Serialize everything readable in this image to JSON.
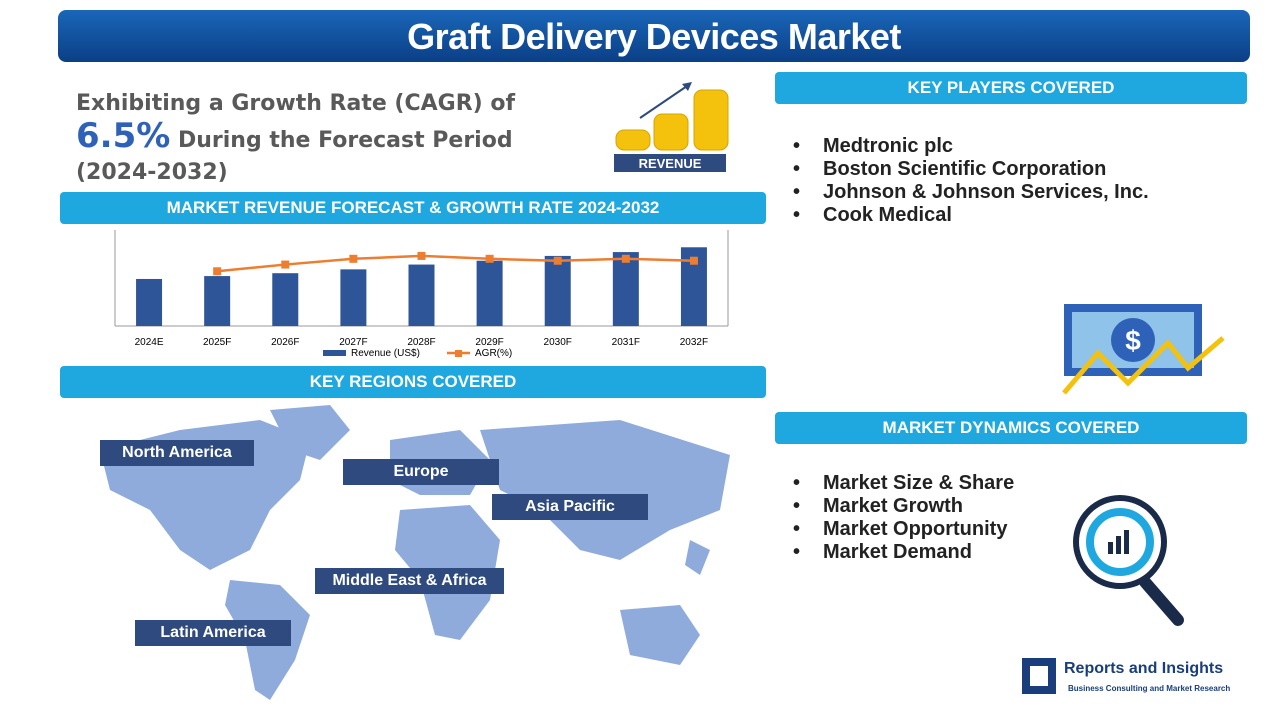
{
  "header": {
    "title": "Graft Delivery Devices Market"
  },
  "cagr": {
    "lead": "Exhibiting a Growth Rate (CAGR) of",
    "rate": "6.5%",
    "tail": "During the Forecast Period (2024-2032)",
    "icon_label": "REVENUE"
  },
  "sections": {
    "forecast": "MARKET REVENUE FORECAST & GROWTH RATE 2024-2032",
    "regions": "KEY REGIONS COVERED",
    "players": "KEY PLAYERS COVERED",
    "dynamics": "MARKET DYNAMICS COVERED"
  },
  "chart_data": {
    "type": "bar-line",
    "categories": [
      "2024E",
      "2025F",
      "2026F",
      "2027F",
      "2028F",
      "2029F",
      "2030F",
      "2031F",
      "2032F"
    ],
    "series": [
      {
        "name": "Revenue (US$)",
        "color": "#2e5597",
        "type": "bar",
        "values": [
          49,
          52,
          55,
          59,
          64,
          68,
          73,
          77,
          82
        ]
      },
      {
        "name": "AGR(%)",
        "color": "#ed7d31",
        "type": "line",
        "axis": "y2",
        "values": [
          null,
          5.7,
          6.4,
          7.0,
          7.3,
          7.0,
          6.8,
          7.0,
          6.8
        ]
      }
    ],
    "ylim": [
      0,
      100
    ],
    "y2lim": [
      0,
      10
    ]
  },
  "players": [
    "Medtronic plc",
    "Boston Scientific Corporation",
    "Johnson & Johnson Services, Inc.",
    "Cook Medical"
  ],
  "regions": [
    "North America",
    "Europe",
    "Asia Pacific",
    "Middle East & Africa",
    "Latin America"
  ],
  "dynamics": [
    "Market Size & Share",
    "Market Growth",
    "Market Opportunity",
    "Market Demand"
  ],
  "brand": {
    "name": "Reports and Insights",
    "tagline": "Business Consulting and Market Research"
  }
}
